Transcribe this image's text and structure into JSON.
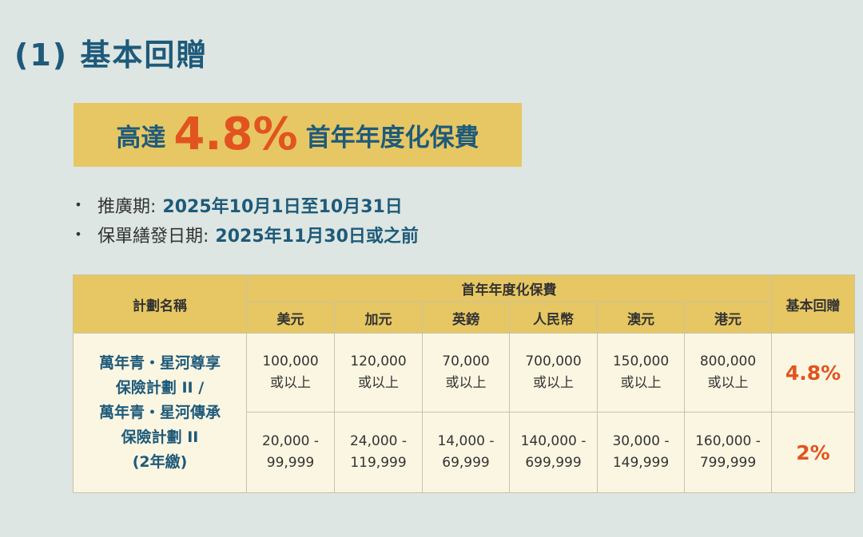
{
  "title": "(1) 基本回贈",
  "banner": {
    "prefix": "高達",
    "percent": "4.8%",
    "suffix": "首年年度化保費"
  },
  "bullets": [
    {
      "label": "推廣期:",
      "value": "2025年10月1日至10月31日"
    },
    {
      "label": "保單繕發日期:",
      "value": "2025年11月30日或之前"
    }
  ],
  "table": {
    "header_plan": "計劃名稱",
    "header_premium": "首年年度化保費",
    "header_rebate": "基本回贈",
    "currencies": [
      "美元",
      "加元",
      "英鎊",
      "人民幣",
      "澳元",
      "港元"
    ],
    "plan_name_lines": [
      "萬年青・星河尊享",
      "保險計劃 II /",
      "萬年青・星河傳承",
      "保險計劃 II",
      "(2年繳)"
    ],
    "rows": [
      {
        "cells": [
          [
            "100,000",
            "或以上"
          ],
          [
            "120,000",
            "或以上"
          ],
          [
            "70,000",
            "或以上"
          ],
          [
            "700,000",
            "或以上"
          ],
          [
            "150,000",
            "或以上"
          ],
          [
            "800,000",
            "或以上"
          ]
        ],
        "rebate": "4.8%"
      },
      {
        "cells": [
          [
            "20,000 -",
            "99,999"
          ],
          [
            "24,000 -",
            "119,999"
          ],
          [
            "14,000 -",
            "69,999"
          ],
          [
            "140,000 -",
            "699,999"
          ],
          [
            "30,000 -",
            "149,999"
          ],
          [
            "160,000 -",
            "799,999"
          ]
        ],
        "rebate": "2%"
      }
    ]
  }
}
